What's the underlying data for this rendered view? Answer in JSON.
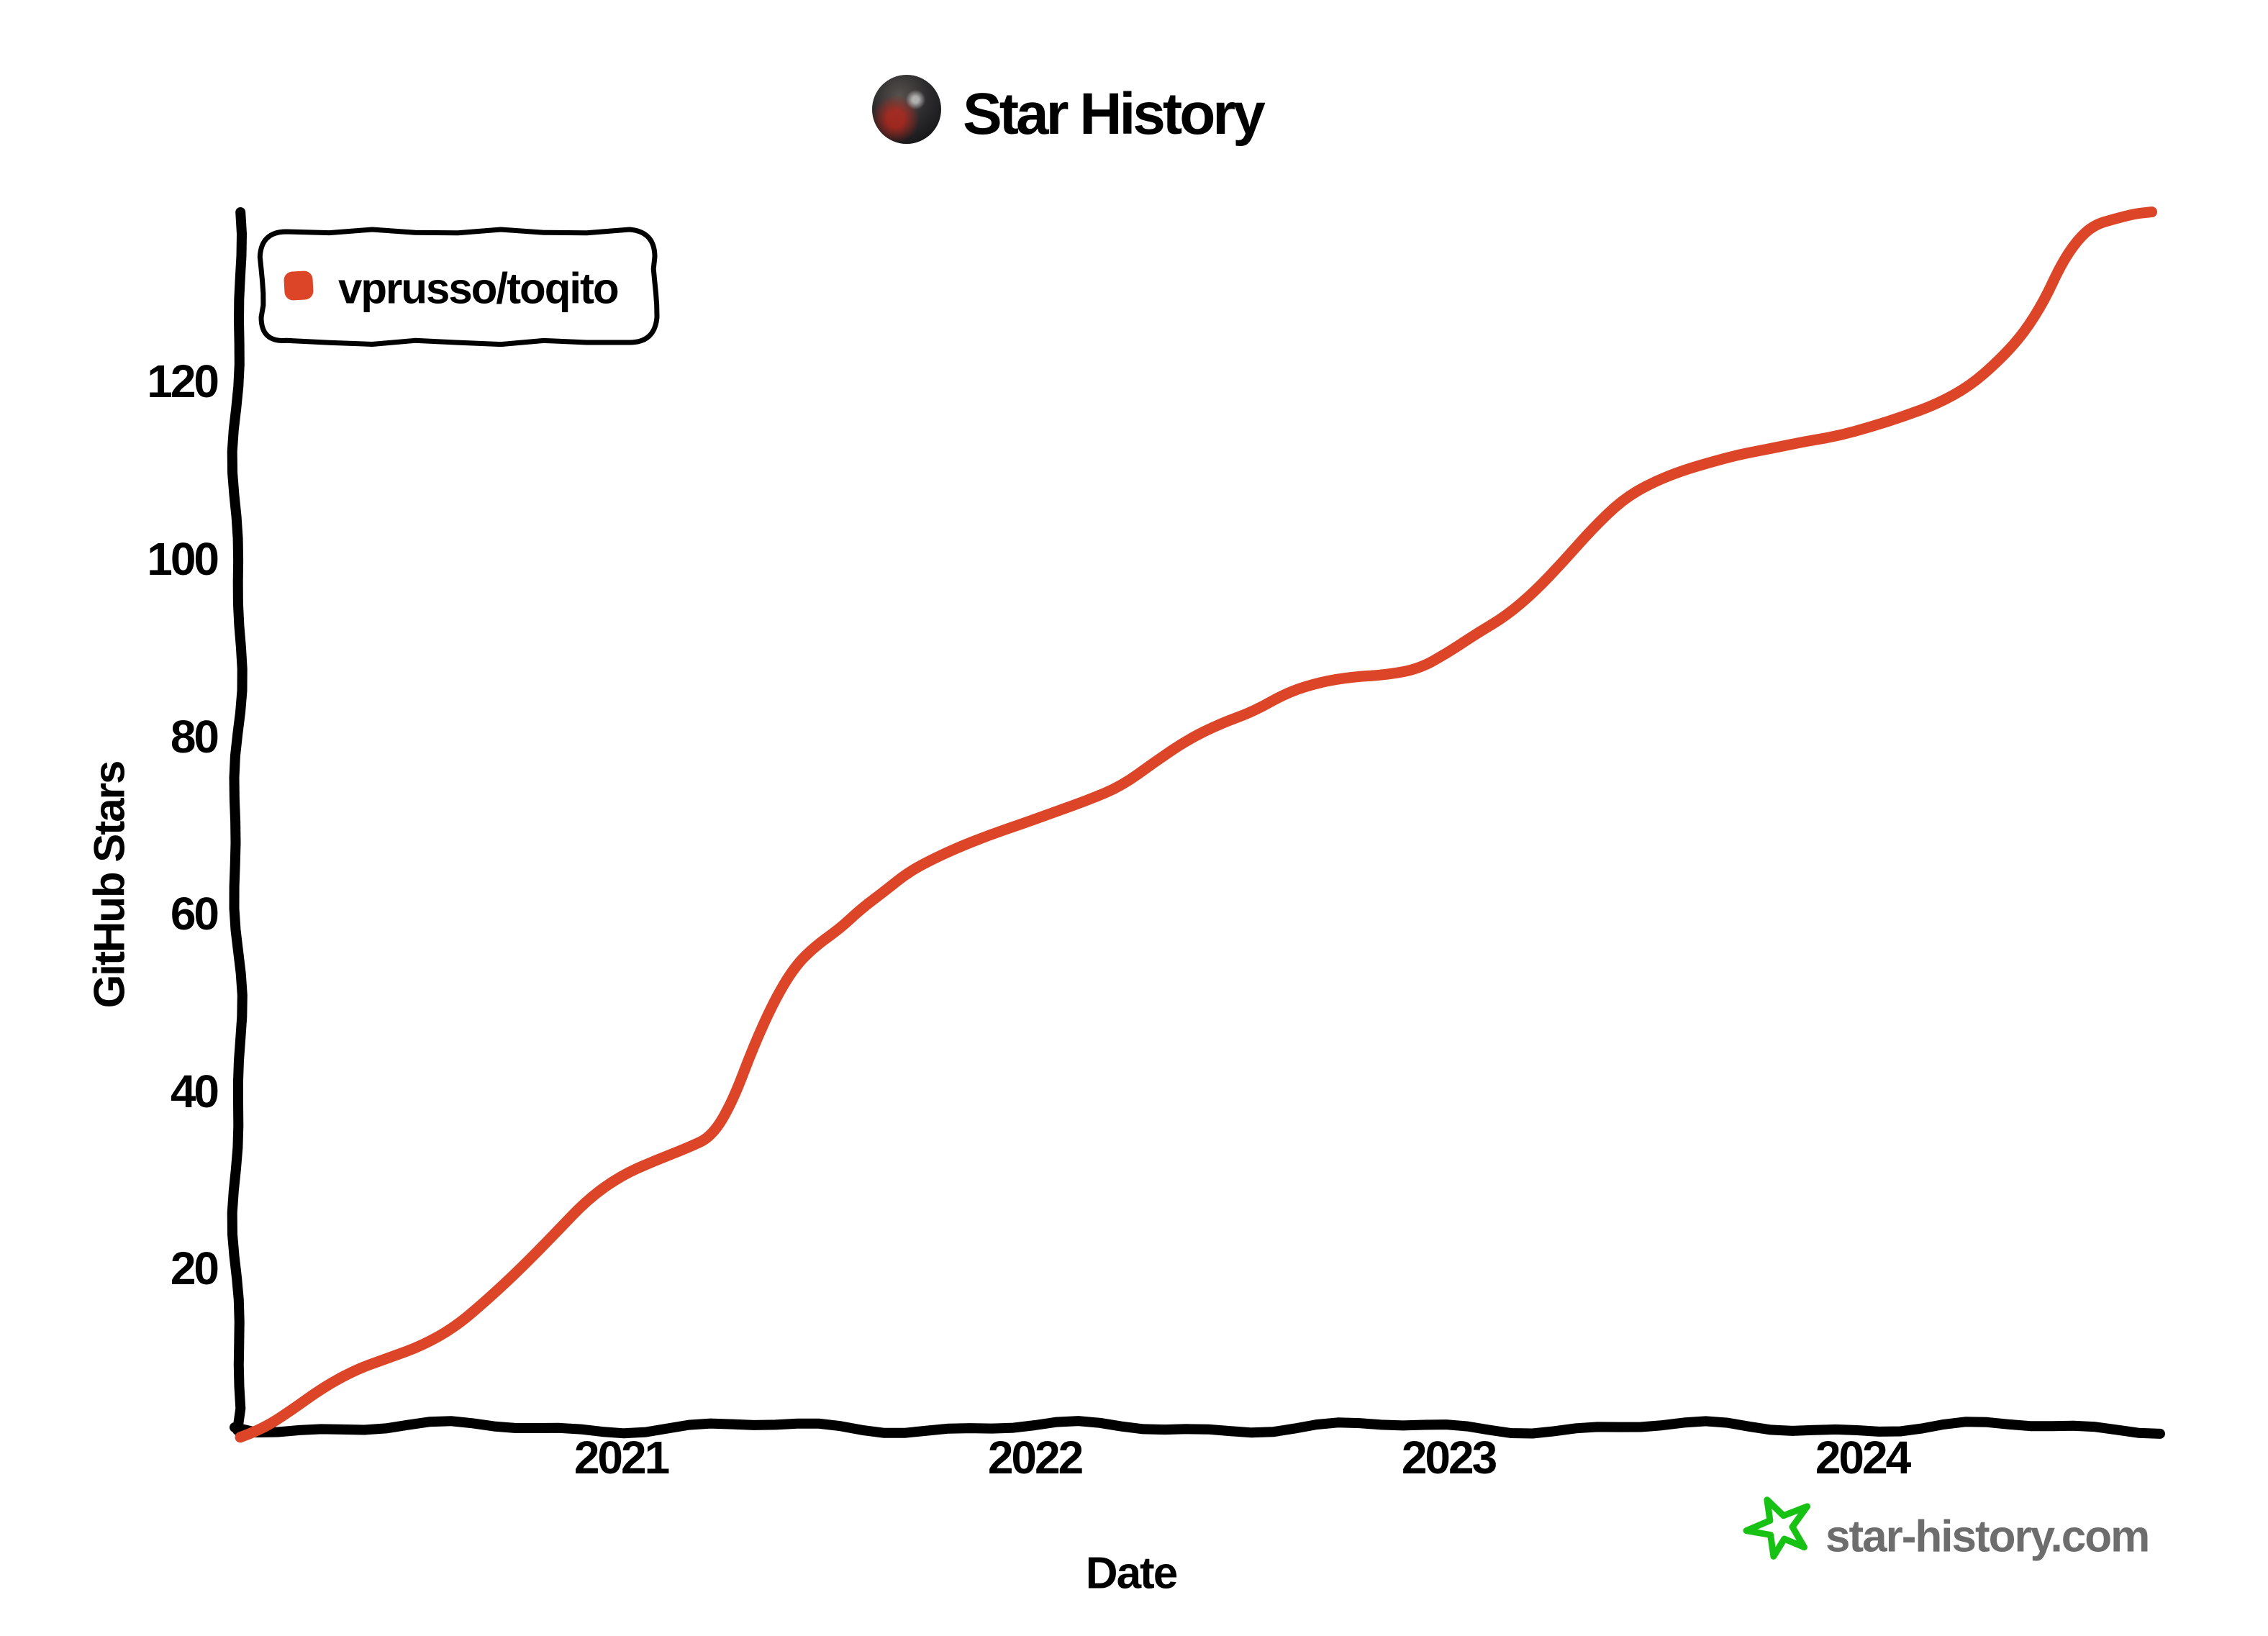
{
  "page": {
    "background": "#ffffff"
  },
  "header": {
    "title": "Star History",
    "avatar_icon": "repo-owner-avatar-photo"
  },
  "footer": {
    "brand_text": "star-history.com",
    "brand_text_color": "#6D6D6D",
    "star_icon_color": "#18C214"
  },
  "chart_data": {
    "type": "line",
    "title": "Star History",
    "xlabel": "Date",
    "ylabel": "GitHub Stars",
    "style": "hand-drawn-xkcd",
    "grid": false,
    "legend_position": "top-left",
    "axis_color": "#000000",
    "x_tick_years": [
      2021,
      2022,
      2023,
      2024
    ],
    "y_ticks": [
      20,
      40,
      60,
      80,
      100,
      120
    ],
    "x_range_years": [
      2020.05,
      2024.75
    ],
    "ylim": [
      0,
      145
    ],
    "series": [
      {
        "name": "vprusso/toqito",
        "color": "#DD4528",
        "points_year_stars": [
          [
            2020.08,
            1
          ],
          [
            2020.13,
            2
          ],
          [
            2020.2,
            4
          ],
          [
            2020.28,
            6.5
          ],
          [
            2020.36,
            8.5
          ],
          [
            2020.44,
            10
          ],
          [
            2020.52,
            11.5
          ],
          [
            2020.6,
            13.5
          ],
          [
            2020.68,
            16.5
          ],
          [
            2020.76,
            20
          ],
          [
            2020.84,
            24
          ],
          [
            2020.92,
            28
          ],
          [
            2021.0,
            30.5
          ],
          [
            2021.08,
            32
          ],
          [
            2021.16,
            33.5
          ],
          [
            2021.22,
            35
          ],
          [
            2021.27,
            39
          ],
          [
            2021.32,
            45
          ],
          [
            2021.37,
            50
          ],
          [
            2021.42,
            54
          ],
          [
            2021.47,
            56.5
          ],
          [
            2021.53,
            58.5
          ],
          [
            2021.58,
            60.5
          ],
          [
            2021.64,
            62.5
          ],
          [
            2021.69,
            64.5
          ],
          [
            2021.74,
            66
          ],
          [
            2021.81,
            67.5
          ],
          [
            2021.89,
            68.8
          ],
          [
            2021.97,
            70
          ],
          [
            2022.05,
            71.5
          ],
          [
            2022.13,
            73
          ],
          [
            2022.21,
            74.5
          ],
          [
            2022.29,
            77
          ],
          [
            2022.37,
            79.5
          ],
          [
            2022.45,
            81.5
          ],
          [
            2022.53,
            83
          ],
          [
            2022.61,
            85
          ],
          [
            2022.69,
            86
          ],
          [
            2022.77,
            86.6
          ],
          [
            2022.85,
            87
          ],
          [
            2022.93,
            87.8
          ],
          [
            2023.0,
            89.5
          ],
          [
            2023.07,
            91.5
          ],
          [
            2023.14,
            93.5
          ],
          [
            2023.21,
            96.5
          ],
          [
            2023.28,
            100
          ],
          [
            2023.35,
            103.5
          ],
          [
            2023.42,
            106.5
          ],
          [
            2023.49,
            108.5
          ],
          [
            2023.56,
            110
          ],
          [
            2023.63,
            111
          ],
          [
            2023.7,
            111.7
          ],
          [
            2023.78,
            112.3
          ],
          [
            2023.86,
            113.2
          ],
          [
            2023.94,
            114
          ],
          [
            2024.02,
            115
          ],
          [
            2024.1,
            116
          ],
          [
            2024.18,
            117.3
          ],
          [
            2024.26,
            119.5
          ],
          [
            2024.33,
            122.5
          ],
          [
            2024.39,
            125.5
          ],
          [
            2024.44,
            129
          ],
          [
            2024.48,
            133
          ],
          [
            2024.52,
            136
          ],
          [
            2024.56,
            137.8
          ],
          [
            2024.61,
            138.4
          ],
          [
            2024.66,
            138.8
          ],
          [
            2024.7,
            139
          ]
        ]
      }
    ]
  }
}
